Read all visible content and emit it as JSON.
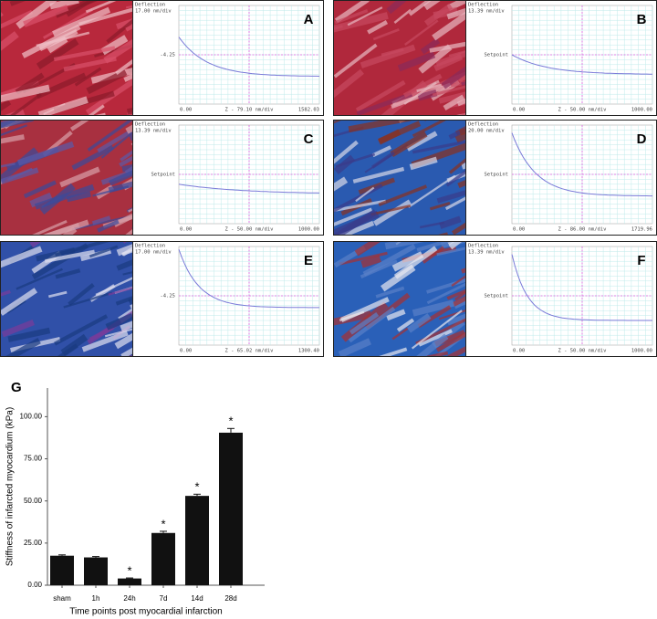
{
  "panels": [
    {
      "letter": "A",
      "deflection": "Deflection",
      "scale": "17.00 nm/div",
      "y_marker": "-4.25",
      "x_start": "0.00",
      "x_label": "Z - 79.10 nm/div",
      "x_end": "1582.03"
    },
    {
      "letter": "B",
      "deflection": "Deflection",
      "scale": "13.39 nm/div",
      "y_marker": "Setpoint",
      "x_start": "0.00",
      "x_label": "Z - 50.00 nm/div",
      "x_end": "1000.00"
    },
    {
      "letter": "C",
      "deflection": "Deflection",
      "scale": "13.39 nm/div",
      "y_marker": "Setpoint",
      "x_start": "0.00",
      "x_label": "Z - 50.00 nm/div",
      "x_end": "1000.00"
    },
    {
      "letter": "D",
      "deflection": "Deflection",
      "scale": "20.00 nm/div",
      "y_marker": "Setpoint",
      "x_start": "0.00",
      "x_label": "Z - 86.00 nm/div",
      "x_end": "1719.96"
    },
    {
      "letter": "E",
      "deflection": "Deflection",
      "scale": "17.00 nm/div",
      "y_marker": "-4.25",
      "x_start": "0.00",
      "x_label": "Z - 65.02 nm/div",
      "x_end": "1300.40"
    },
    {
      "letter": "F",
      "deflection": "Deflection",
      "scale": "13.39 nm/div",
      "y_marker": "Setpoint",
      "x_start": "0.00",
      "x_label": "Z - 50.00 nm/div",
      "x_end": "1000.00"
    }
  ],
  "chart_data": {
    "type": "bar",
    "panel_label": "G",
    "categories": [
      "sham",
      "1h",
      "24h",
      "7d",
      "14d",
      "28d"
    ],
    "values": [
      17.5,
      16.5,
      4,
      31,
      53,
      90.5
    ],
    "errors": [
      0.5,
      0.5,
      0.3,
      1,
      1,
      2.5
    ],
    "significant": [
      false,
      false,
      true,
      true,
      true,
      true
    ],
    "significance_marker": "*",
    "color": "#111111",
    "x_label": "Time points post myocardial infarction",
    "y_label": "Stiffness  of infarcted myocardium (kPa)",
    "ylim": [
      0,
      117
    ],
    "yticks": [
      {
        "value": 0,
        "label": "0.00"
      },
      {
        "value": 25,
        "label": "25.00"
      },
      {
        "value": 50,
        "label": "50.00"
      },
      {
        "value": 75,
        "label": "75.00"
      },
      {
        "value": 100,
        "label": "100.00"
      }
    ]
  }
}
